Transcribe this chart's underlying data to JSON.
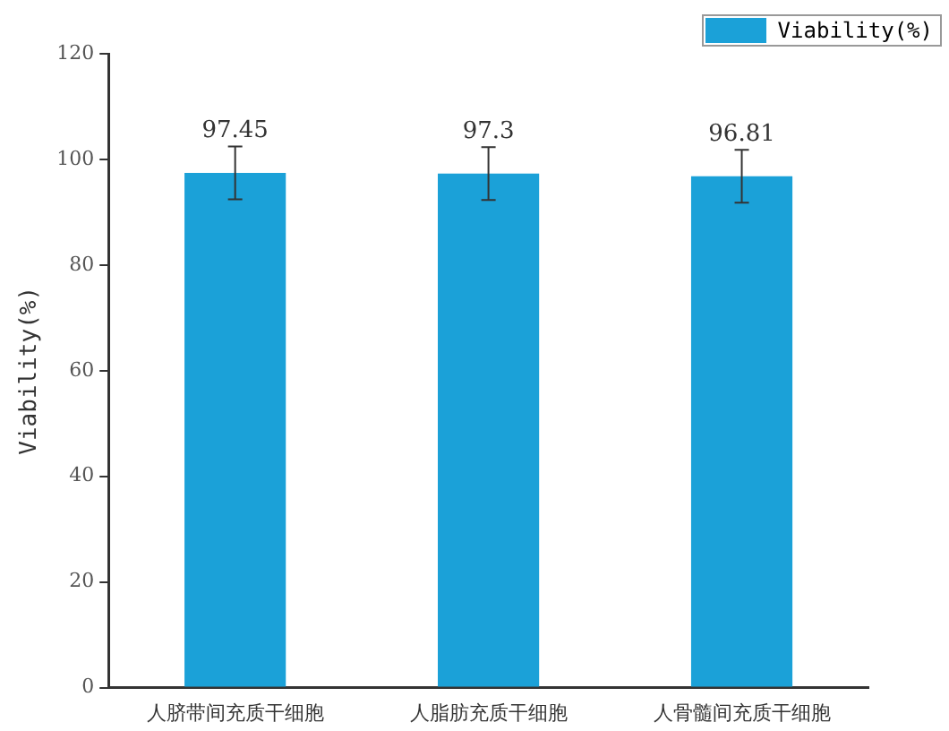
{
  "chart_data": {
    "type": "bar",
    "ylabel": "Viability(%)",
    "categories": [
      "人脐带间充质干细胞",
      "人脂肪充质干细胞",
      "人骨髓间充质干细胞"
    ],
    "series": [
      {
        "name": "Viability(%)",
        "color": "#1ba1d8",
        "values": [
          97.45,
          97.3,
          96.81
        ],
        "errors": [
          5,
          5,
          5
        ]
      }
    ],
    "ylim": [
      0,
      120
    ],
    "yticks": [
      0,
      20,
      40,
      60,
      80,
      100,
      120
    ],
    "grid": false,
    "legend": "top right",
    "data_labels": true
  }
}
